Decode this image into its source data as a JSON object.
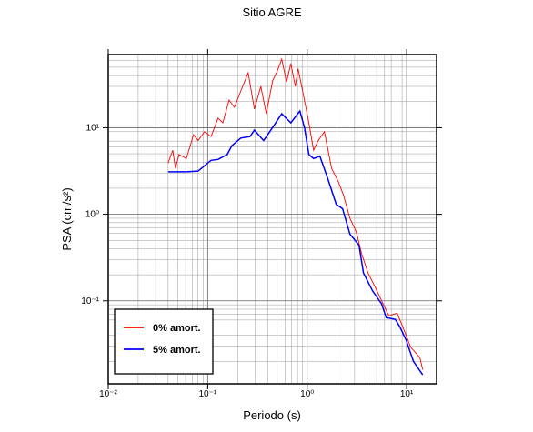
{
  "chart_data": {
    "type": "line",
    "title": "Sitio AGRE",
    "x_label": "Periodo (s)",
    "y_label": "PSA (cm/s²)",
    "log_x": true,
    "log_y": true,
    "grid": true,
    "legend": "lower left",
    "xlim": [
      0.01,
      20
    ],
    "ylim": [
      0.011,
      70
    ],
    "xticks": [
      {
        "value": 0.01,
        "label": "10⁻²"
      },
      {
        "value": 0.1,
        "label": "10⁻¹"
      },
      {
        "value": 1,
        "label": "10⁰"
      },
      {
        "value": 10,
        "label": "10¹"
      }
    ],
    "yticks": [
      {
        "value": 0.1,
        "label": "10⁻¹"
      },
      {
        "value": 1,
        "label": "10⁰"
      },
      {
        "value": 10,
        "label": "10¹"
      }
    ],
    "series": [
      {
        "name": "0% amort.",
        "color": "#ff0000",
        "x": [
          0.04,
          0.0445,
          0.0474,
          0.0515,
          0.061,
          0.072,
          0.08,
          0.093,
          0.108,
          0.127,
          0.142,
          0.164,
          0.186,
          0.215,
          0.255,
          0.295,
          0.342,
          0.388,
          0.45,
          0.5,
          0.555,
          0.62,
          0.685,
          0.76,
          0.81,
          0.9,
          1.04,
          1.16,
          1.29,
          1.49,
          1.76,
          2.05,
          2.32,
          2.69,
          3.11,
          3.53,
          4.09,
          4.74,
          5.61,
          6.64,
          8.02,
          9.49,
          11,
          13.6,
          14.5
        ],
        "values": [
          3.9,
          5.5,
          3.4,
          4.9,
          4.4,
          8.3,
          7.1,
          9,
          7.9,
          12.9,
          11.4,
          20.8,
          17.2,
          26.5,
          43,
          16.4,
          30,
          14.5,
          35,
          45,
          62,
          33.7,
          55,
          30,
          48,
          26.5,
          11.4,
          5.5,
          7.1,
          9,
          3.4,
          2.4,
          1.66,
          0.9,
          0.63,
          0.35,
          0.21,
          0.15,
          0.1,
          0.067,
          0.072,
          0.045,
          0.029,
          0.022,
          0.016
        ]
      },
      {
        "name": "5% amort.",
        "color": "#0000ff",
        "x": [
          0.04,
          0.061,
          0.08,
          0.108,
          0.127,
          0.157,
          0.175,
          0.215,
          0.266,
          0.295,
          0.365,
          0.45,
          0.555,
          0.685,
          0.845,
          0.94,
          1.04,
          1.16,
          1.34,
          1.59,
          1.96,
          2.27,
          2.69,
          3.32,
          3.68,
          4.55,
          5.61,
          6.23,
          7.69,
          8.55,
          9.9,
          11.7,
          14.5
        ],
        "values": [
          3.1,
          3.1,
          3.15,
          4.2,
          4.3,
          4.9,
          6.2,
          7.6,
          7.9,
          9.4,
          7.1,
          10.1,
          14.5,
          11.4,
          15.6,
          10,
          4.9,
          4.4,
          4.7,
          2.7,
          1.3,
          1.16,
          0.59,
          0.44,
          0.21,
          0.13,
          0.092,
          0.064,
          0.061,
          0.05,
          0.035,
          0.02,
          0.014
        ]
      }
    ]
  }
}
